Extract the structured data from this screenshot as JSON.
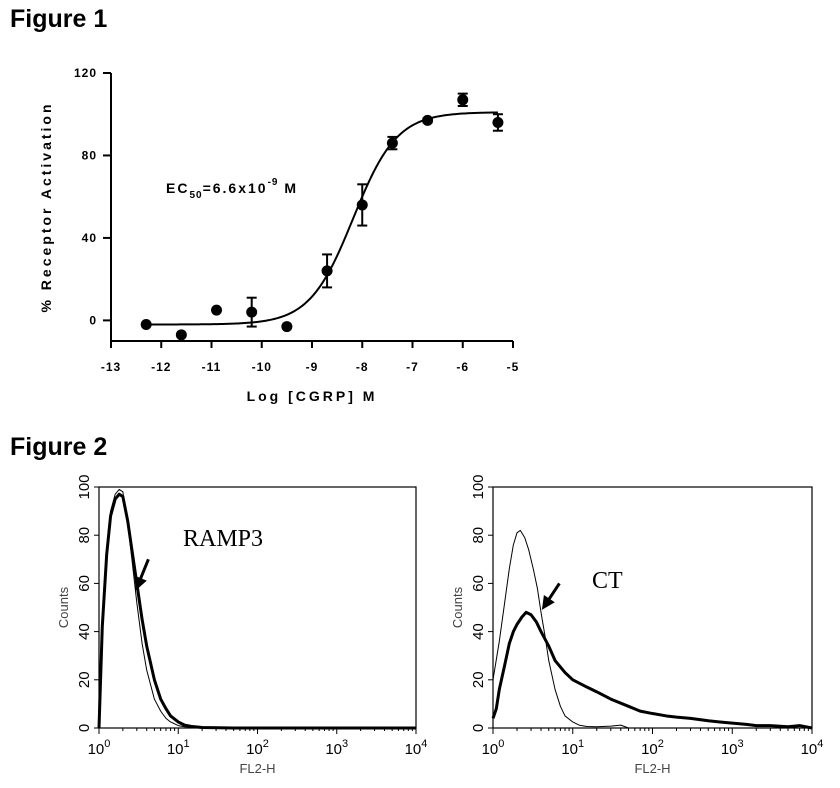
{
  "figure1_title": "Figure 1",
  "figure2_title": "Figure 2",
  "chart_data": [
    {
      "type": "scatter",
      "fit": "sigmoidal dose-response",
      "xlabel": "Log [CGRP] M",
      "ylabel": "% Receptor Activation",
      "xlim": [
        -13,
        -5
      ],
      "ylim": [
        -10,
        120
      ],
      "xticks": [
        "-13",
        "-12",
        "-11",
        "-10",
        "-9",
        "-8",
        "-7",
        "-6",
        "-5"
      ],
      "yticks": [
        "0",
        "40",
        "80",
        "120"
      ],
      "annotation": {
        "main": "EC",
        "sub": "50",
        "mid": "=6.6x10",
        "sup": "-9",
        "tail": " M"
      },
      "points": [
        {
          "x": -12.3,
          "y": -2,
          "err": 0
        },
        {
          "x": -11.6,
          "y": -7,
          "err": 0
        },
        {
          "x": -10.9,
          "y": 5,
          "err": 0
        },
        {
          "x": -10.2,
          "y": 4,
          "err": 7
        },
        {
          "x": -9.5,
          "y": -3,
          "err": 0
        },
        {
          "x": -8.7,
          "y": 24,
          "err": 8
        },
        {
          "x": -8.0,
          "y": 56,
          "err": 10
        },
        {
          "x": -7.4,
          "y": 86,
          "err": 3
        },
        {
          "x": -6.7,
          "y": 97,
          "err": 1
        },
        {
          "x": -6.0,
          "y": 107,
          "err": 3
        },
        {
          "x": -5.3,
          "y": 96,
          "err": 4
        }
      ],
      "fit_params": {
        "bottom": -2,
        "top": 101,
        "logEC50": -8.18,
        "hill": 1.0
      }
    },
    {
      "type": "line",
      "label": "RAMP3",
      "xlabel": "FL2-H",
      "ylabel": "Counts",
      "xscale": "log",
      "xlim": [
        1,
        10000
      ],
      "ylim": [
        0,
        100
      ],
      "yticks": [
        "0",
        "20",
        "40",
        "60",
        "80",
        "100"
      ],
      "xticks": [
        {
          "base": "10",
          "exp": "0"
        },
        {
          "base": "10",
          "exp": "1"
        },
        {
          "base": "10",
          "exp": "2"
        },
        {
          "base": "10",
          "exp": "3"
        },
        {
          "base": "10",
          "exp": "4"
        }
      ],
      "series": [
        {
          "style": "thin",
          "x": [
            1.0,
            1.1,
            1.25,
            1.4,
            1.6,
            1.8,
            2.0,
            2.3,
            2.6,
            3.0,
            3.5,
            4.0,
            5.0,
            6.0,
            7.0,
            8.0,
            10,
            12,
            15,
            20,
            50,
            10000
          ],
          "y": [
            0,
            45,
            75,
            90,
            97,
            99,
            98,
            85,
            70,
            52,
            35,
            24,
            12,
            7,
            4,
            2.5,
            1,
            0.5,
            0.3,
            0,
            0,
            0
          ]
        },
        {
          "style": "thick",
          "x": [
            1.0,
            1.1,
            1.25,
            1.4,
            1.6,
            1.8,
            2.0,
            2.3,
            2.6,
            3.0,
            3.5,
            4.0,
            5.0,
            6.0,
            7.0,
            8.0,
            10,
            12,
            15,
            20,
            50,
            10000
          ],
          "y": [
            0,
            42,
            72,
            88,
            95,
            97,
            96,
            86,
            74,
            60,
            45,
            34,
            20,
            12,
            8,
            5,
            2.5,
            1.2,
            0.6,
            0.2,
            0,
            0
          ]
        }
      ],
      "arrow": {
        "from": [
          4.2,
          70
        ],
        "to": [
          2.9,
          57
        ]
      }
    },
    {
      "type": "line",
      "label": "CT",
      "xlabel": "FL2-H",
      "ylabel": "Counts",
      "xscale": "log",
      "xlim": [
        1,
        10000
      ],
      "ylim": [
        0,
        100
      ],
      "yticks": [
        "0",
        "20",
        "40",
        "60",
        "80",
        "100"
      ],
      "xticks": [
        {
          "base": "10",
          "exp": "0"
        },
        {
          "base": "10",
          "exp": "1"
        },
        {
          "base": "10",
          "exp": "2"
        },
        {
          "base": "10",
          "exp": "3"
        },
        {
          "base": "10",
          "exp": "4"
        }
      ],
      "series": [
        {
          "style": "thin",
          "x": [
            1.0,
            1.2,
            1.4,
            1.6,
            1.8,
            2.0,
            2.2,
            2.5,
            2.8,
            3.2,
            3.6,
            4.0,
            4.5,
            5.0,
            6.0,
            7.0,
            8.0,
            10,
            12,
            15,
            20,
            30,
            40,
            50,
            10000
          ],
          "y": [
            20,
            36,
            52,
            66,
            76,
            81,
            82,
            79,
            74,
            66,
            58,
            48,
            38,
            28,
            16,
            9,
            5,
            2.5,
            1.2,
            0.6,
            0.5,
            0.8,
            1.2,
            0,
            0
          ]
        },
        {
          "style": "thick",
          "x": [
            1.0,
            1.1,
            1.2,
            1.4,
            1.6,
            1.8,
            2.0,
            2.3,
            2.6,
            3.0,
            3.5,
            4.0,
            5.0,
            6.0,
            8.0,
            10,
            15,
            20,
            30,
            50,
            70,
            100,
            150,
            200,
            300,
            500,
            700,
            1000,
            1500,
            2000,
            3000,
            5000,
            7000,
            10000
          ],
          "y": [
            4,
            8,
            16,
            26,
            35,
            40,
            43,
            46,
            48,
            47,
            44,
            40,
            34,
            28,
            23,
            20,
            17,
            15,
            12,
            9,
            7,
            6,
            5,
            4.5,
            4,
            3,
            2.5,
            2,
            1.5,
            1,
            1,
            0.5,
            1,
            0
          ]
        }
      ],
      "arrow": {
        "from": [
          6.8,
          60
        ],
        "to": [
          4.1,
          49
        ]
      }
    }
  ]
}
